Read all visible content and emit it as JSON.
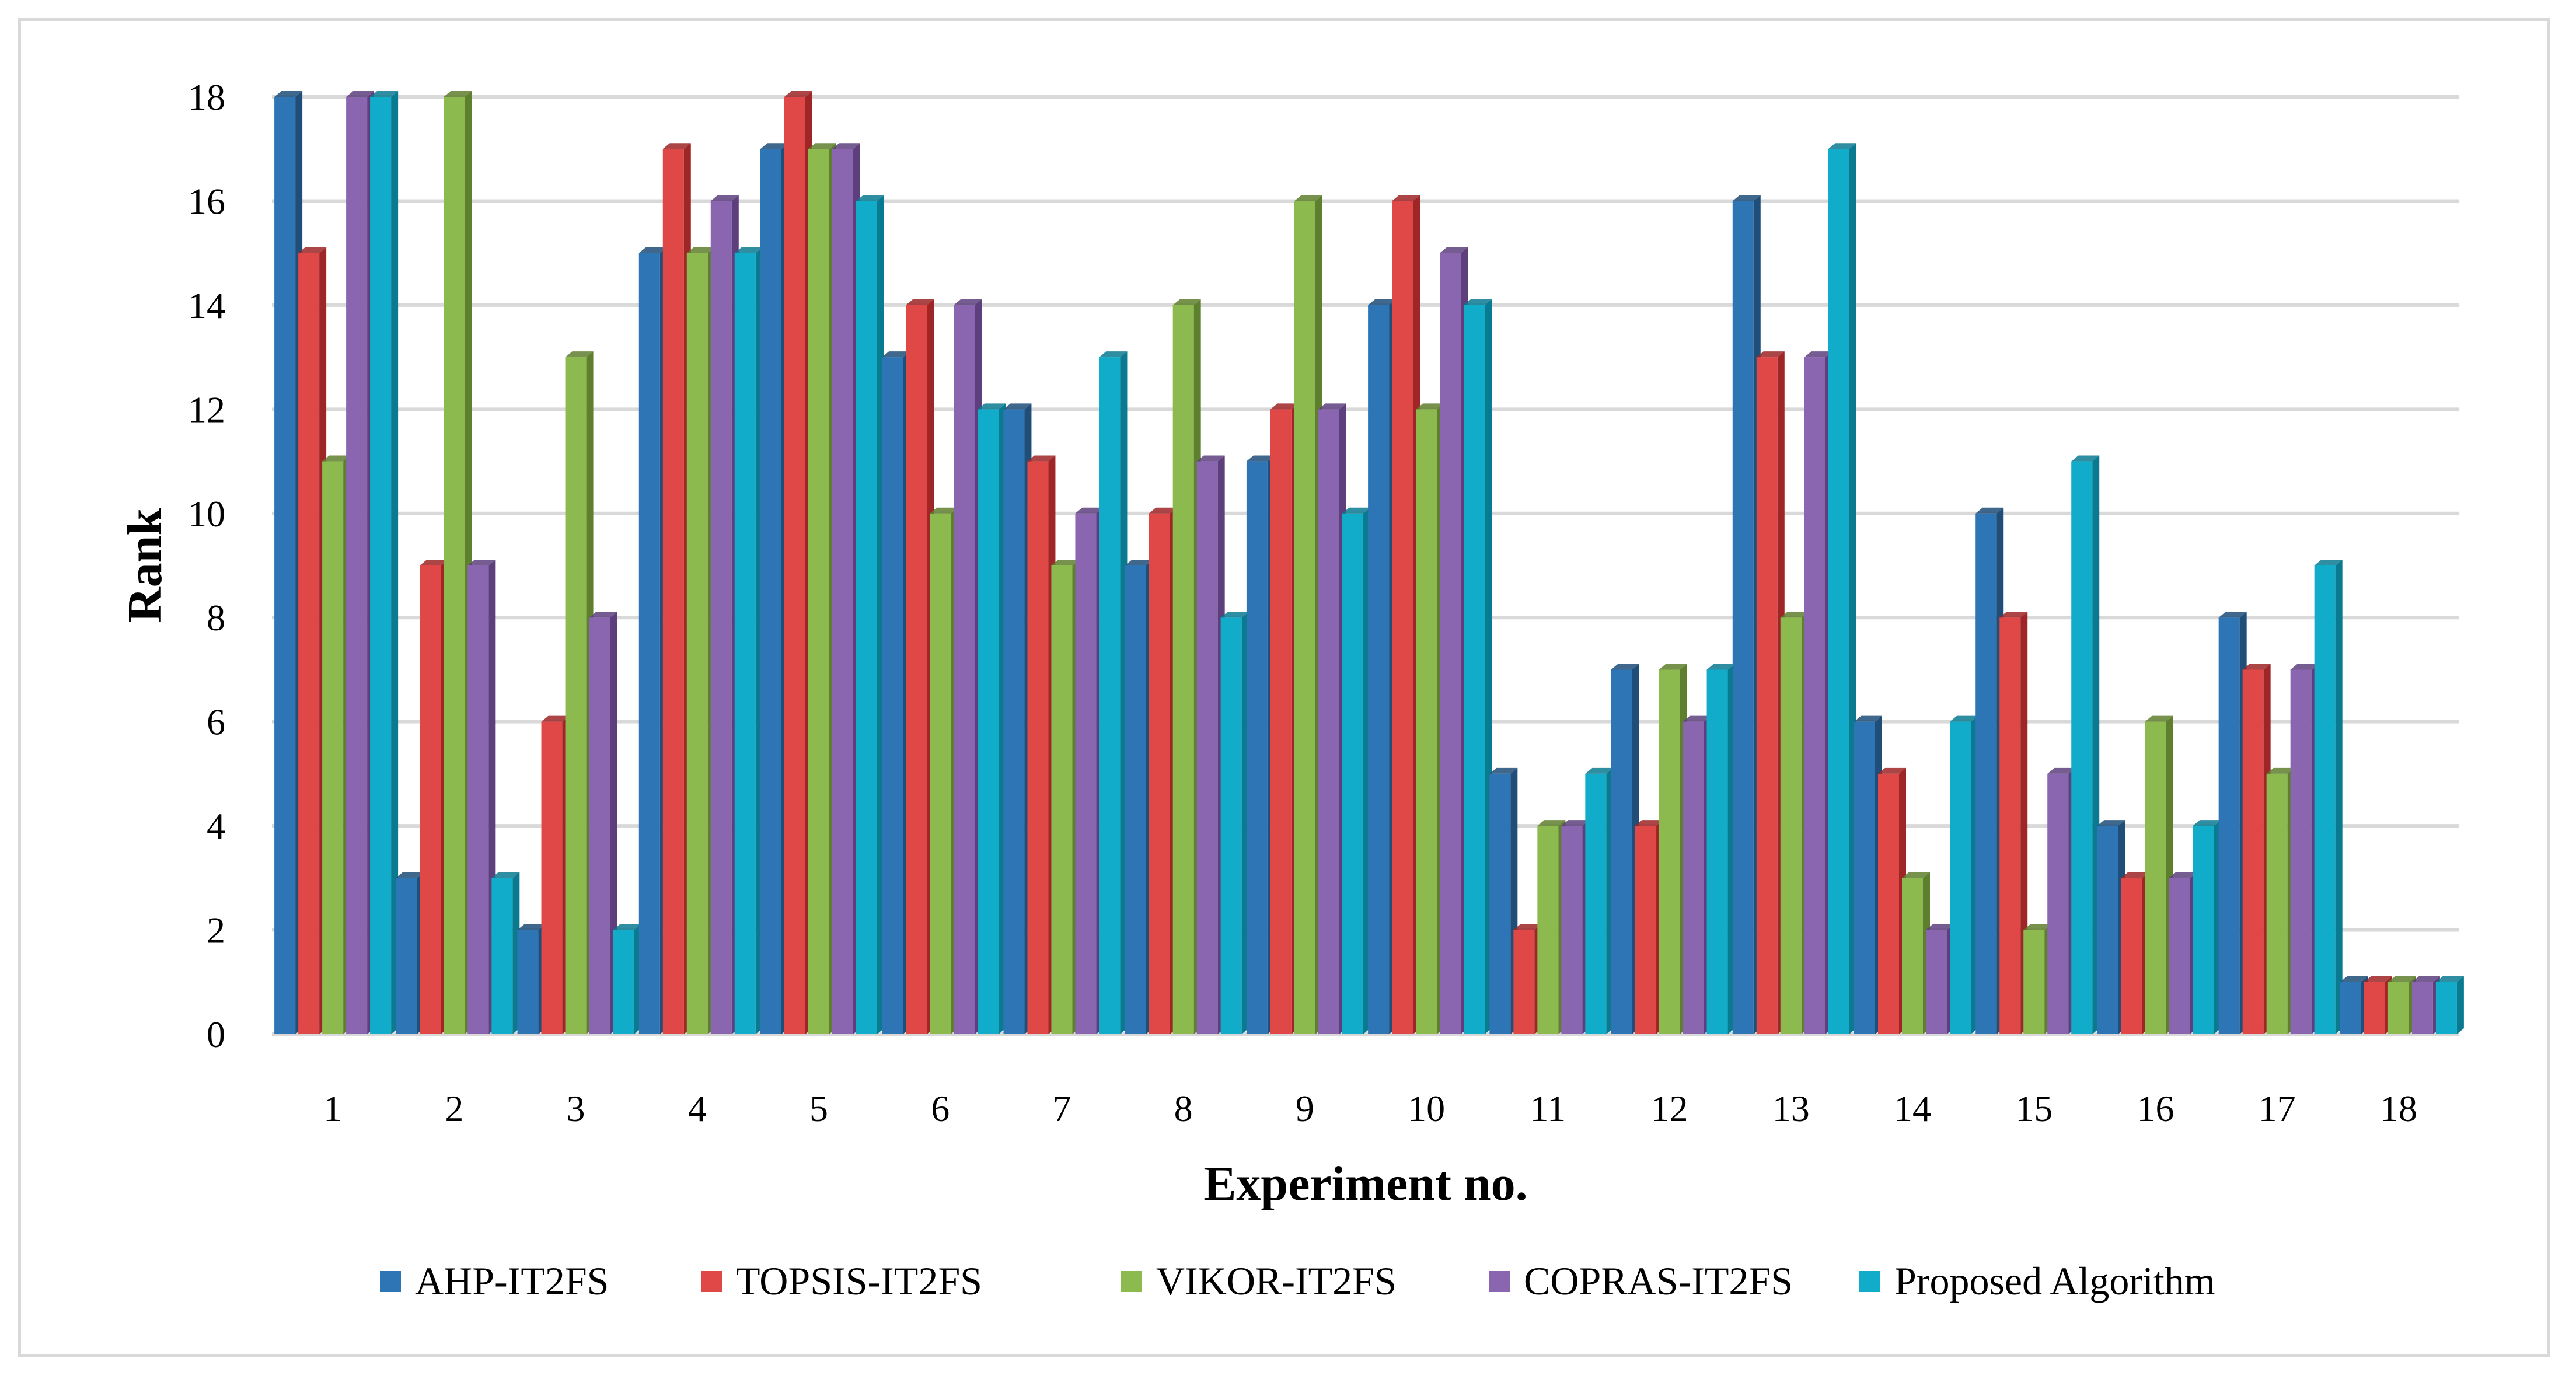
{
  "chart_data": {
    "type": "bar",
    "title": "",
    "xlabel": "Experiment no.",
    "ylabel": "Rank",
    "ylim": [
      0,
      18
    ],
    "yticks": [
      0,
      2,
      4,
      6,
      8,
      10,
      12,
      14,
      16,
      18
    ],
    "grid": true,
    "legend_position": "bottom",
    "categories": [
      "1",
      "2",
      "3",
      "4",
      "5",
      "6",
      "7",
      "8",
      "9",
      "10",
      "11",
      "12",
      "13",
      "14",
      "15",
      "16",
      "17",
      "18"
    ],
    "series": [
      {
        "name": "AHP-IT2FS",
        "color": "#2E75B6",
        "side": "#1F4E79",
        "values": [
          18,
          3,
          2,
          15,
          17,
          13,
          12,
          9,
          11,
          14,
          5,
          7,
          16,
          6,
          10,
          4,
          8,
          1
        ]
      },
      {
        "name": "TOPSIS-IT2FS",
        "color": "#E04848",
        "side": "#9E2626",
        "values": [
          15,
          9,
          6,
          17,
          18,
          14,
          11,
          10,
          12,
          16,
          2,
          4,
          13,
          5,
          8,
          3,
          7,
          1
        ]
      },
      {
        "name": "VIKOR-IT2FS",
        "color": "#8DBA4E",
        "side": "#5E7F2E",
        "values": [
          11,
          18,
          13,
          15,
          17,
          10,
          9,
          14,
          16,
          12,
          4,
          7,
          8,
          3,
          2,
          6,
          5,
          1
        ]
      },
      {
        "name": "COPRAS-IT2FS",
        "color": "#8B66B0",
        "side": "#5D3F7E",
        "values": [
          18,
          9,
          8,
          16,
          17,
          14,
          10,
          11,
          12,
          15,
          4,
          6,
          13,
          2,
          5,
          3,
          7,
          1
        ]
      },
      {
        "name": "Proposed Algorithm",
        "color": "#12ACCB",
        "side": "#0A7A90",
        "values": [
          18,
          3,
          2,
          15,
          16,
          12,
          13,
          8,
          10,
          14,
          5,
          7,
          17,
          6,
          11,
          4,
          9,
          1
        ]
      }
    ]
  }
}
